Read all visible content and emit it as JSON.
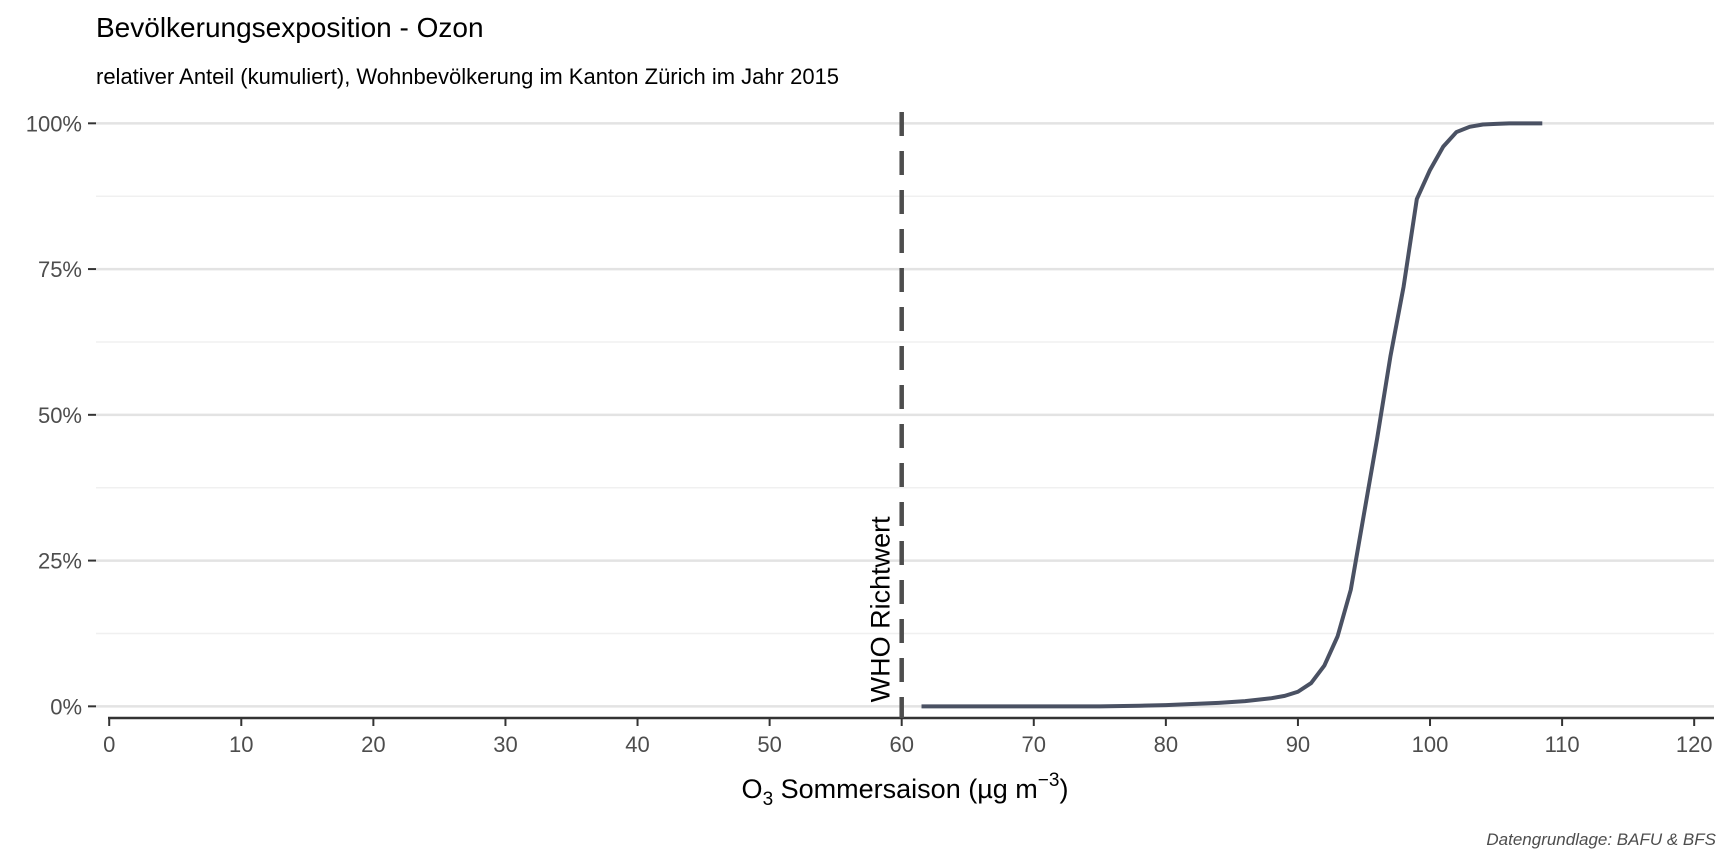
{
  "chart_data": {
    "type": "line",
    "title": "Bevölkerungsexposition - Ozon",
    "subtitle": "relativer Anteil (kumuliert), Wohnbevölkerung im Kanton Zürich im Jahr 2015",
    "xlabel": {
      "main": "O",
      "sub": "3",
      "rest": " Sommersaison (µg m",
      "sup": "−3",
      "close": ")"
    },
    "ylabel": "",
    "xlim": [
      -1,
      121.5
    ],
    "ylim": [
      -0.02,
      1.04
    ],
    "x_ticks": [
      0,
      10,
      20,
      30,
      40,
      50,
      60,
      70,
      80,
      90,
      100,
      110,
      120
    ],
    "y_ticks": [
      0,
      0.25,
      0.5,
      0.75,
      1.0
    ],
    "y_tick_labels": [
      "0%",
      "25%",
      "50%",
      "75%",
      "100%"
    ],
    "grid": true,
    "caption": "Datengrundlage: BAFU & BFS",
    "reference_line": {
      "x": 60,
      "label": "WHO Richtwert"
    },
    "series": [
      {
        "color": "#4a5163",
        "x": [
          61.5,
          65,
          70,
          75,
          78,
          80,
          82,
          84,
          86,
          88,
          89,
          90,
          91,
          92,
          93,
          94,
          95,
          96,
          97,
          98,
          99,
          100,
          101,
          102,
          103,
          104,
          105,
          106,
          107,
          108.5
        ],
        "y": [
          0.0,
          0.0,
          0.0,
          0.0,
          0.001,
          0.002,
          0.004,
          0.006,
          0.009,
          0.014,
          0.018,
          0.025,
          0.04,
          0.07,
          0.12,
          0.2,
          0.33,
          0.46,
          0.6,
          0.72,
          0.87,
          0.92,
          0.96,
          0.985,
          0.994,
          0.998,
          0.999,
          1.0,
          1.0,
          1.0
        ]
      }
    ]
  }
}
